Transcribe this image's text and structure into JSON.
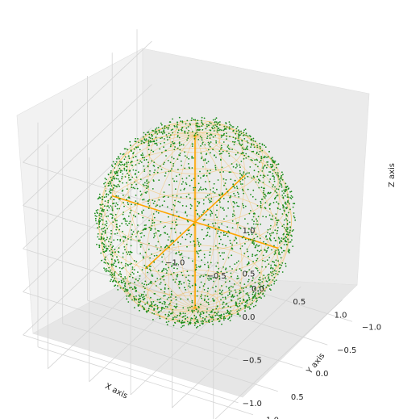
{
  "chart_data": {
    "type": "scatter",
    "projection": "3d",
    "title": "",
    "xlabel": "X axis",
    "ylabel": "Y axis",
    "zlabel": "Z axis",
    "xlim": [
      -1.3,
      1.3
    ],
    "ylim": [
      -1.3,
      1.3
    ],
    "zlim": [
      -1.3,
      1.3
    ],
    "x_ticks": [
      "−1.0",
      "−0.5",
      "0.0",
      "0.5",
      "1.0"
    ],
    "y_ticks": [
      "−1.0",
      "−0.5",
      "0.0",
      "0.5",
      "1.0"
    ],
    "z_ticks": [
      "−1.0",
      "−0.5",
      "0.0",
      "0.5",
      "1.0"
    ],
    "grid": true,
    "sphere": {
      "radius": 1.0,
      "center": [
        0,
        0,
        0
      ],
      "wireframe_color": "#ffa500"
    },
    "axis_lines_color": "#ffa500",
    "point_color": "#1a8c1a",
    "point_count": 2500,
    "point_distribution": "near-uniform on unit sphere surface",
    "point_radius_range": [
      0.95,
      1.05
    ]
  }
}
